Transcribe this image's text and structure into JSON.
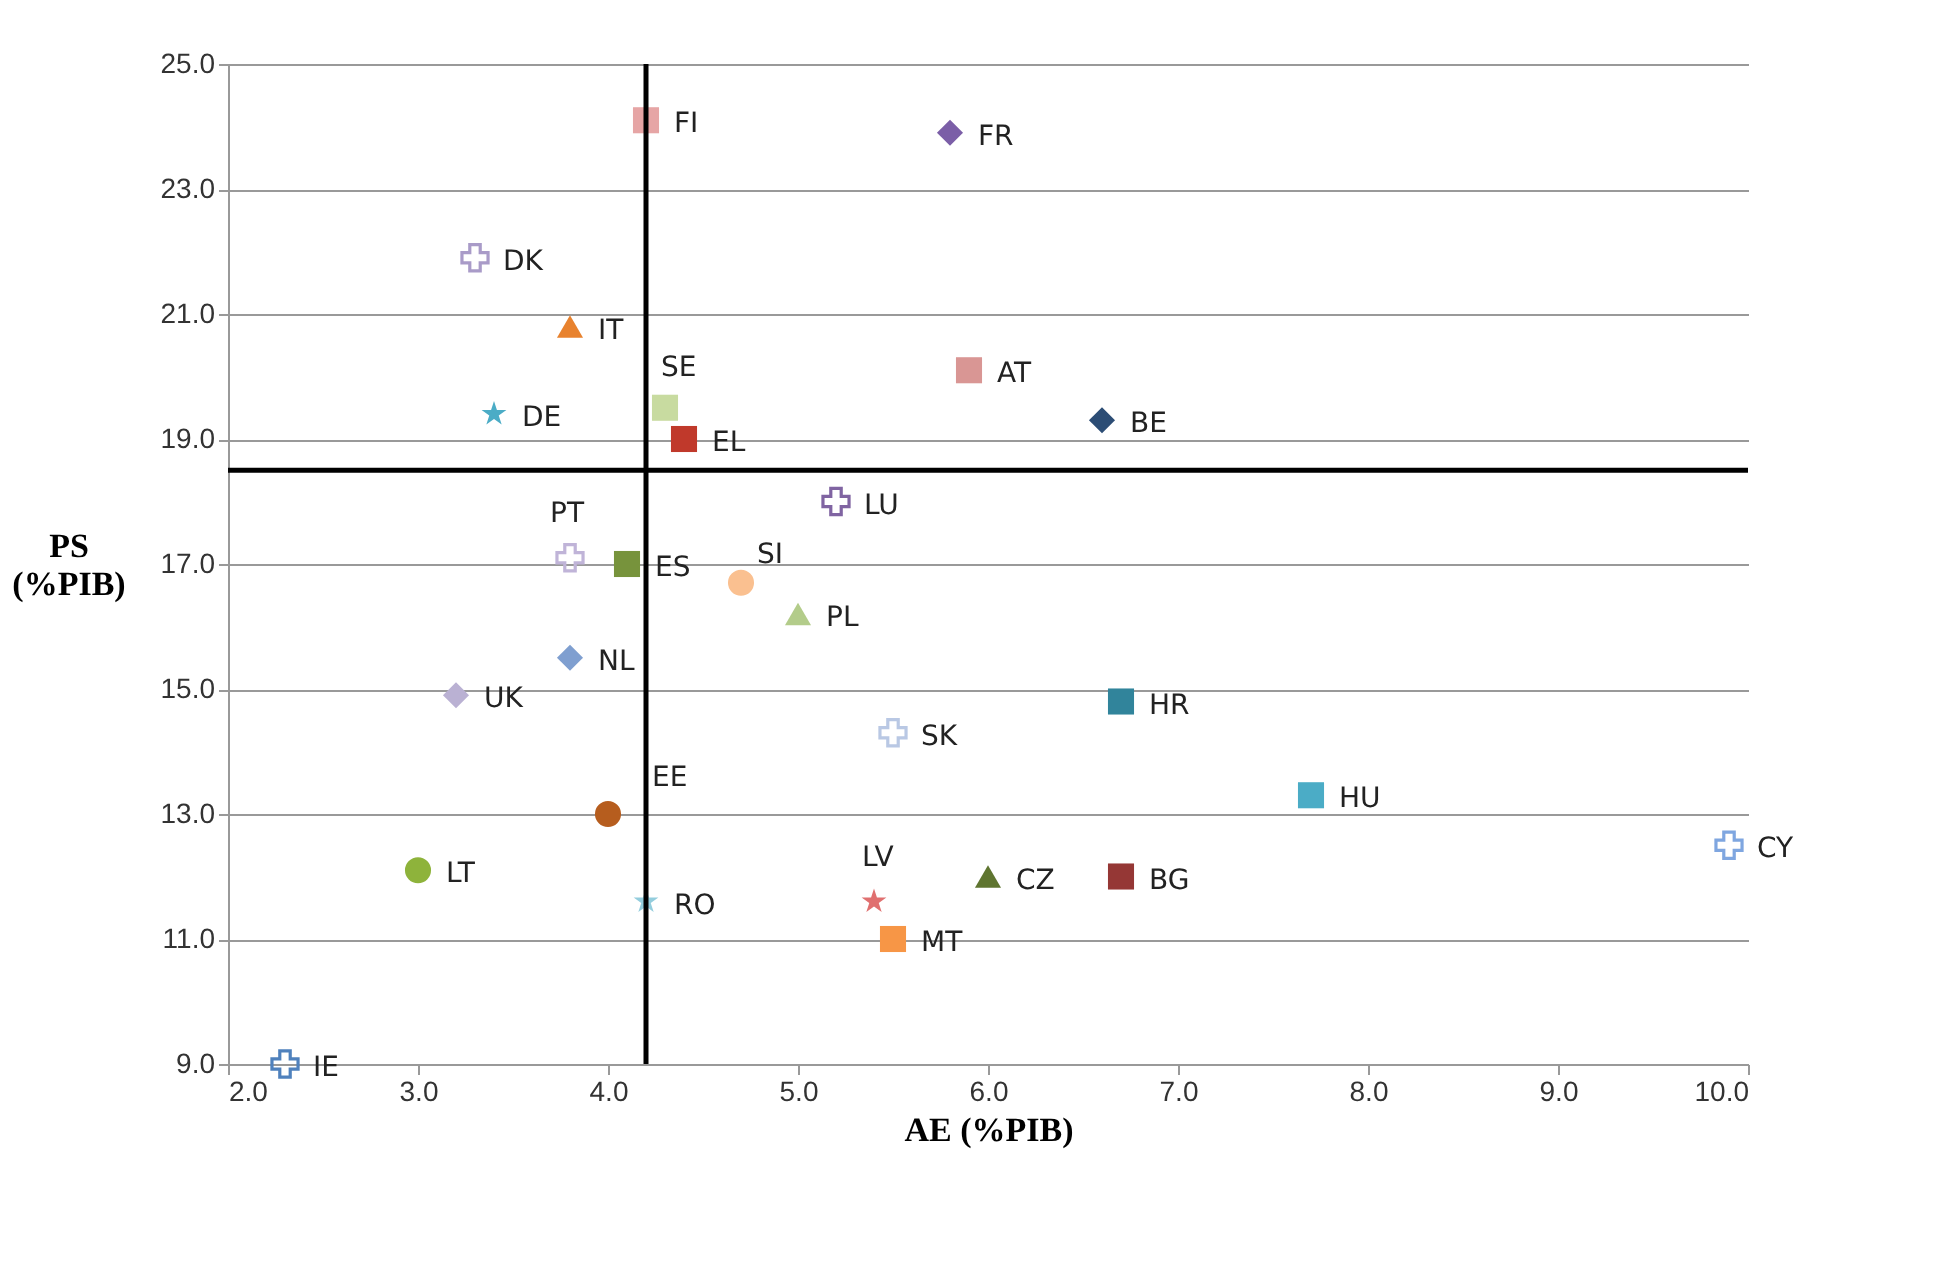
{
  "chart_data": {
    "type": "scatter",
    "xlabel": "AE (%PIB)",
    "ylabel": "PS (%PIB)",
    "xlim": [
      2.0,
      10.0
    ],
    "xticks": [
      {
        "value": 2,
        "label": "2.0"
      },
      {
        "value": 3,
        "label": "3.0"
      },
      {
        "value": 4,
        "label": "4.0"
      },
      {
        "value": 5,
        "label": "5.0"
      },
      {
        "value": 6,
        "label": "6.0"
      },
      {
        "value": 7,
        "label": "7.0"
      },
      {
        "value": 8,
        "label": "8.0"
      },
      {
        "value": 9,
        "label": "9.0"
      },
      {
        "value": 10,
        "label": "10.0"
      }
    ],
    "ylim": [
      9.0,
      25.0
    ],
    "yticks": [
      {
        "value": 9,
        "label": "9.0"
      },
      {
        "value": 11,
        "label": "11.0"
      },
      {
        "value": 13,
        "label": "13.0"
      },
      {
        "value": 15,
        "label": "15.0"
      },
      {
        "value": 17,
        "label": "17.0"
      },
      {
        "value": 19,
        "label": "19.0"
      },
      {
        "value": 21,
        "label": "21.0"
      },
      {
        "value": 23,
        "label": "23.0"
      },
      {
        "value": 25,
        "label": "25.0"
      }
    ],
    "grid": "y",
    "ref_lines": [
      {
        "axis": "x",
        "value": 4.2,
        "color": "#000000"
      },
      {
        "axis": "y",
        "value": 18.5,
        "color": "#000000"
      }
    ],
    "series": [
      {
        "name": "FI",
        "color": "#e6a5a5",
        "marker": "square",
        "x": [
          4.2
        ],
        "values": [
          24.1
        ]
      },
      {
        "name": "FR",
        "color": "#7b5ea7",
        "marker": "diamond",
        "x": [
          5.8
        ],
        "values": [
          23.9
        ]
      },
      {
        "name": "DK",
        "color": "#a99bc8",
        "marker": "cross",
        "x": [
          3.3
        ],
        "values": [
          21.9
        ]
      },
      {
        "name": "IT",
        "color": "#e8822e",
        "marker": "triangle",
        "x": [
          3.8
        ],
        "values": [
          20.8
        ]
      },
      {
        "name": "SE",
        "color": "#c8dba0",
        "marker": "square",
        "x": [
          4.3
        ],
        "values": [
          19.5
        ]
      },
      {
        "name": "DE",
        "color": "#4bacc6",
        "marker": "star",
        "x": [
          3.4
        ],
        "values": [
          19.4
        ]
      },
      {
        "name": "AT",
        "color": "#d99694",
        "marker": "square",
        "x": [
          5.9
        ],
        "values": [
          20.1
        ]
      },
      {
        "name": "BE",
        "color": "#2c4d75",
        "marker": "diamond",
        "x": [
          6.6
        ],
        "values": [
          19.3
        ]
      },
      {
        "name": "EL",
        "color": "#c0392b",
        "marker": "square",
        "x": [
          4.4
        ],
        "values": [
          19.0
        ]
      },
      {
        "name": "LU",
        "color": "#8064a2",
        "marker": "cross",
        "x": [
          5.2
        ],
        "values": [
          18.0
        ]
      },
      {
        "name": "PT",
        "color": "#c0b4d8",
        "marker": "cross",
        "x": [
          3.8
        ],
        "values": [
          17.1
        ]
      },
      {
        "name": "ES",
        "color": "#77933c",
        "marker": "square",
        "x": [
          4.1
        ],
        "values": [
          17.0
        ]
      },
      {
        "name": "SI",
        "color": "#fac090",
        "marker": "circle",
        "x": [
          4.7
        ],
        "values": [
          16.7
        ]
      },
      {
        "name": "PL",
        "color": "#b3cc8a",
        "marker": "triangle",
        "x": [
          5.0
        ],
        "values": [
          16.2
        ]
      },
      {
        "name": "NL",
        "color": "#7f9fd0",
        "marker": "diamond",
        "x": [
          3.8
        ],
        "values": [
          15.5
        ]
      },
      {
        "name": "UK",
        "color": "#bab1d3",
        "marker": "diamond",
        "x": [
          3.2
        ],
        "values": [
          14.9
        ]
      },
      {
        "name": "SK",
        "color": "#b9c8e4",
        "marker": "cross",
        "x": [
          5.5
        ],
        "values": [
          14.3
        ]
      },
      {
        "name": "HR",
        "color": "#31849b",
        "marker": "square",
        "x": [
          6.7
        ],
        "values": [
          14.8
        ]
      },
      {
        "name": "HU",
        "color": "#4bacc6",
        "marker": "square",
        "x": [
          7.7
        ],
        "values": [
          13.3
        ]
      },
      {
        "name": "EE",
        "color": "#b65d1e",
        "marker": "circle",
        "x": [
          4.0
        ],
        "values": [
          13.0
        ]
      },
      {
        "name": "CY",
        "color": "#7fa6e0",
        "marker": "cross",
        "x": [
          9.9
        ],
        "values": [
          12.5
        ]
      },
      {
        "name": "LT",
        "color": "#8eb33b",
        "marker": "circle",
        "x": [
          3.0
        ],
        "values": [
          12.1
        ]
      },
      {
        "name": "CZ",
        "color": "#5f7530",
        "marker": "triangle",
        "x": [
          6.0
        ],
        "values": [
          12.0
        ]
      },
      {
        "name": "BG",
        "color": "#953735",
        "marker": "square",
        "x": [
          6.7
        ],
        "values": [
          12.0
        ]
      },
      {
        "name": "LV",
        "color": "#e07070",
        "marker": "star",
        "x": [
          5.4
        ],
        "values": [
          11.6
        ]
      },
      {
        "name": "RO",
        "color": "#93cddd",
        "marker": "star",
        "x": [
          4.2
        ],
        "values": [
          11.6
        ]
      },
      {
        "name": "MT",
        "color": "#f79646",
        "marker": "square",
        "x": [
          5.5
        ],
        "values": [
          11.0
        ]
      },
      {
        "name": "IE",
        "color": "#4f81bd",
        "marker": "cross",
        "x": [
          2.3
        ],
        "values": [
          9.0
        ]
      }
    ]
  }
}
